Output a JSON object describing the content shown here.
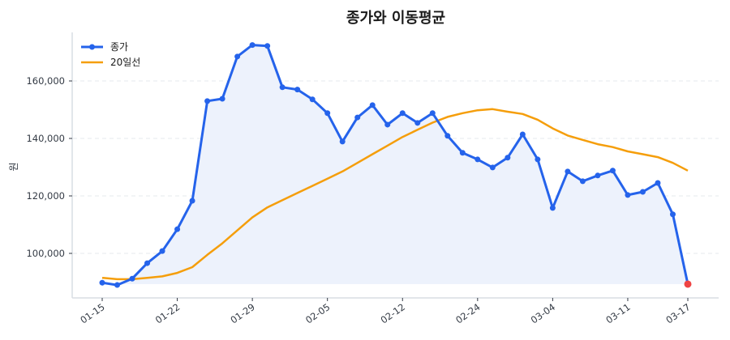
{
  "chart_data": {
    "type": "line",
    "title": "종가와 이동평균",
    "xlabel": "",
    "ylabel": "원",
    "ylim": [
      86000,
      176000
    ],
    "yticks": [
      100000,
      120000,
      140000,
      160000
    ],
    "ytick_labels": [
      "100,000",
      "120,000",
      "140,000",
      "160,000"
    ],
    "xtick_labels": [
      "01-15",
      "01-22",
      "01-29",
      "02-05",
      "02-12",
      "02-24",
      "03-04",
      "03-11",
      "03-17"
    ],
    "xtick_index": [
      0,
      5,
      10,
      15,
      20,
      25,
      30,
      35,
      39
    ],
    "grid": "horizontal dashed",
    "legend_position": "upper left",
    "legend": [
      "종가",
      "20일선"
    ],
    "x": [
      "01-15",
      "01-16",
      "01-17",
      "01-18",
      "01-19",
      "01-22",
      "01-23",
      "01-24",
      "01-25",
      "01-26",
      "01-29",
      "01-30",
      "01-31",
      "02-01",
      "02-02",
      "02-05",
      "02-06",
      "02-07",
      "02-08",
      "02-09",
      "02-12",
      "02-13",
      "02-14",
      "02-15",
      "02-16",
      "02-24",
      "02-25",
      "02-26",
      "02-27",
      "02-28",
      "03-04",
      "03-05",
      "03-06",
      "03-07",
      "03-08",
      "03-11",
      "03-12",
      "03-13",
      "03-14",
      "03-17"
    ],
    "series": [
      {
        "name": "종가",
        "color": "#2563eb",
        "marker": "circle",
        "fill": "#edf2fc",
        "last_point_color": "#ef4444",
        "values": [
          89800,
          89000,
          91200,
          96600,
          100800,
          108400,
          118300,
          153000,
          153800,
          168500,
          172500,
          172200,
          157800,
          157000,
          153600,
          148800,
          138900,
          147300,
          151600,
          144800,
          148800,
          145400,
          148800,
          140900,
          135000,
          132700,
          129900,
          133300,
          141400,
          132700,
          115800,
          128500,
          125100,
          127100,
          128800,
          120300,
          121400,
          124500,
          113600,
          89300
        ]
      },
      {
        "name": "20일선",
        "color": "#f59e0b",
        "values": [
          91500,
          91000,
          91000,
          91500,
          92000,
          93200,
          95200,
          99500,
          103500,
          108000,
          112500,
          116000,
          118500,
          121000,
          123500,
          126000,
          128500,
          131500,
          134500,
          137500,
          140500,
          143000,
          145500,
          147500,
          148800,
          149800,
          150200,
          149300,
          148500,
          146500,
          143500,
          141000,
          139500,
          138000,
          137000,
          135500,
          134500,
          133500,
          131500,
          128800
        ]
      }
    ]
  }
}
